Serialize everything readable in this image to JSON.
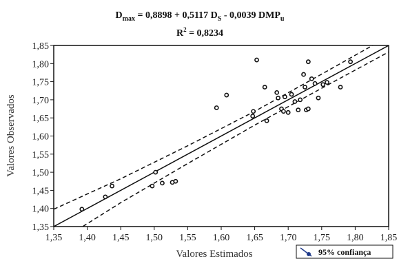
{
  "chart_data": {
    "type": "scatter",
    "title_parts": {
      "d": "D",
      "d_sub": "max",
      "eq1": " = 0,8898 + 0,5117  D",
      "s_sub": "S",
      "eq2": " - 0,0039 DMP",
      "u_sub": "u"
    },
    "subtitle_parts": {
      "r": "R",
      "sup": "2",
      "rest": " = 0,8234"
    },
    "xlabel": "Valores Estimados",
    "ylabel": "Valores Observados",
    "xlim": [
      1.35,
      1.85
    ],
    "ylim": [
      1.35,
      1.85
    ],
    "xticks": [
      1.35,
      1.4,
      1.45,
      1.5,
      1.55,
      1.6,
      1.65,
      1.7,
      1.75,
      1.8,
      1.85
    ],
    "yticks": [
      1.35,
      1.4,
      1.45,
      1.5,
      1.55,
      1.6,
      1.65,
      1.7,
      1.75,
      1.8,
      1.85
    ],
    "xtick_labels": [
      "1,35",
      "1,40",
      "1,45",
      "1,50",
      "1,55",
      "1,60",
      "1,65",
      "1,70",
      "1,75",
      "1,80",
      "1,85"
    ],
    "ytick_labels": [
      "1,35",
      "1,40",
      "1,45",
      "1,50",
      "1,55",
      "1,60",
      "1,65",
      "1,70",
      "1,75",
      "1,80",
      "1,85"
    ],
    "points": [
      [
        1.392,
        1.398
      ],
      [
        1.427,
        1.432
      ],
      [
        1.437,
        1.462
      ],
      [
        1.497,
        1.462
      ],
      [
        1.502,
        1.5
      ],
      [
        1.512,
        1.47
      ],
      [
        1.527,
        1.472
      ],
      [
        1.532,
        1.475
      ],
      [
        1.593,
        1.678
      ],
      [
        1.608,
        1.713
      ],
      [
        1.647,
        1.655
      ],
      [
        1.648,
        1.668
      ],
      [
        1.653,
        1.81
      ],
      [
        1.665,
        1.735
      ],
      [
        1.668,
        1.642
      ],
      [
        1.683,
        1.72
      ],
      [
        1.685,
        1.705
      ],
      [
        1.69,
        1.675
      ],
      [
        1.693,
        1.668
      ],
      [
        1.695,
        1.708
      ],
      [
        1.7,
        1.665
      ],
      [
        1.705,
        1.715
      ],
      [
        1.71,
        1.695
      ],
      [
        1.715,
        1.672
      ],
      [
        1.718,
        1.7
      ],
      [
        1.723,
        1.77
      ],
      [
        1.725,
        1.735
      ],
      [
        1.727,
        1.672
      ],
      [
        1.73,
        1.675
      ],
      [
        1.73,
        1.805
      ],
      [
        1.735,
        1.758
      ],
      [
        1.74,
        1.745
      ],
      [
        1.745,
        1.705
      ],
      [
        1.752,
        1.742
      ],
      [
        1.758,
        1.748
      ],
      [
        1.778,
        1.735
      ],
      [
        1.793,
        1.805
      ]
    ],
    "regression_line": [
      [
        1.35,
        1.35
      ],
      [
        1.85,
        1.85
      ]
    ],
    "confidence_upper": [
      [
        1.35,
        1.398
      ],
      [
        1.45,
        1.482
      ],
      [
        1.55,
        1.573
      ],
      [
        1.65,
        1.668
      ],
      [
        1.75,
        1.771
      ],
      [
        1.85,
        1.875
      ]
    ],
    "confidence_lower": [
      [
        1.35,
        1.3
      ],
      [
        1.45,
        1.416
      ],
      [
        1.55,
        1.524
      ],
      [
        1.65,
        1.63
      ],
      [
        1.75,
        1.732
      ],
      [
        1.85,
        1.832
      ]
    ],
    "legend": {
      "label": "95% confiança",
      "position": "bottom-right"
    },
    "grid": false,
    "colors": {
      "line": "#111111",
      "points": "#111111",
      "legend_icon": "#1f3a8a"
    }
  }
}
